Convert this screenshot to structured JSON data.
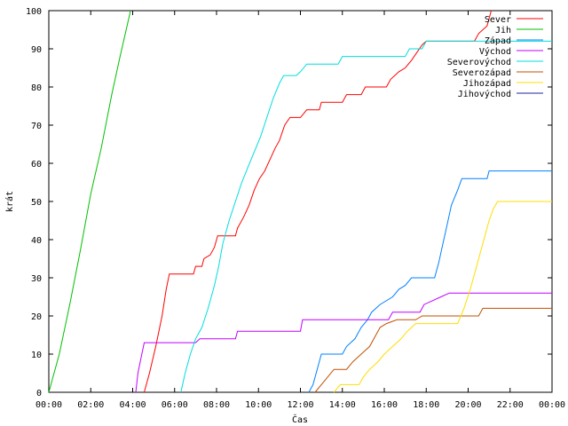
{
  "chart_data": {
    "type": "line",
    "title": "",
    "xlabel": "Čas",
    "ylabel": "krát",
    "xlim": [
      0,
      24
    ],
    "ylim": [
      0,
      100
    ],
    "x_ticks": [
      "00:00",
      "02:00",
      "04:00",
      "06:00",
      "08:00",
      "10:00",
      "12:00",
      "14:00",
      "16:00",
      "18:00",
      "20:00",
      "22:00",
      "00:00"
    ],
    "y_ticks": [
      "0",
      "10",
      "20",
      "30",
      "40",
      "50",
      "60",
      "70",
      "80",
      "90",
      "100"
    ],
    "grid": false,
    "legend_position": "top-right",
    "series": [
      {
        "name": "Sever",
        "color": "#ff0000",
        "points": [
          [
            4.55,
            0
          ],
          [
            4.8,
            5
          ],
          [
            5.1,
            12
          ],
          [
            5.4,
            20
          ],
          [
            5.6,
            27
          ],
          [
            5.75,
            31
          ],
          [
            6.9,
            31
          ],
          [
            7.0,
            33
          ],
          [
            7.3,
            33
          ],
          [
            7.4,
            35
          ],
          [
            7.7,
            36
          ],
          [
            7.9,
            38
          ],
          [
            8.05,
            41
          ],
          [
            8.9,
            41
          ],
          [
            9.0,
            43
          ],
          [
            9.3,
            46
          ],
          [
            9.55,
            49
          ],
          [
            9.8,
            53
          ],
          [
            10.05,
            56
          ],
          [
            10.3,
            58
          ],
          [
            10.55,
            61
          ],
          [
            10.8,
            64
          ],
          [
            11.0,
            66
          ],
          [
            11.25,
            70
          ],
          [
            11.5,
            72
          ],
          [
            12.0,
            72
          ],
          [
            12.3,
            74
          ],
          [
            12.9,
            74
          ],
          [
            13.0,
            76
          ],
          [
            14.0,
            76
          ],
          [
            14.2,
            78
          ],
          [
            14.9,
            78
          ],
          [
            15.1,
            80
          ],
          [
            16.1,
            80
          ],
          [
            16.3,
            82
          ],
          [
            16.7,
            84
          ],
          [
            17.0,
            85
          ],
          [
            17.3,
            87
          ],
          [
            17.55,
            89
          ],
          [
            17.8,
            91
          ],
          [
            18.0,
            92
          ],
          [
            20.3,
            92
          ],
          [
            20.5,
            94
          ],
          [
            20.9,
            96
          ],
          [
            21.1,
            100
          ]
        ]
      },
      {
        "name": "Jih",
        "color": "#00c000",
        "points": [
          [
            0,
            0
          ],
          [
            0.5,
            10
          ],
          [
            1.0,
            23
          ],
          [
            1.5,
            37
          ],
          [
            2.0,
            52
          ],
          [
            2.5,
            64
          ],
          [
            3.0,
            78
          ],
          [
            3.4,
            88
          ],
          [
            3.9,
            100
          ]
        ]
      },
      {
        "name": "Západ",
        "color": "#0080ff",
        "points": [
          [
            12.4,
            0
          ],
          [
            12.6,
            2
          ],
          [
            12.8,
            6
          ],
          [
            13.0,
            10
          ],
          [
            14.0,
            10
          ],
          [
            14.2,
            12
          ],
          [
            14.6,
            14
          ],
          [
            14.9,
            17
          ],
          [
            15.2,
            19
          ],
          [
            15.4,
            21
          ],
          [
            15.8,
            23
          ],
          [
            16.4,
            25
          ],
          [
            16.7,
            27
          ],
          [
            17.0,
            28
          ],
          [
            17.3,
            30
          ],
          [
            18.4,
            30
          ],
          [
            18.6,
            34
          ],
          [
            18.8,
            39
          ],
          [
            19.0,
            44
          ],
          [
            19.2,
            49
          ],
          [
            19.5,
            53
          ],
          [
            19.7,
            56
          ],
          [
            20.9,
            56
          ],
          [
            21.0,
            58
          ],
          [
            24.0,
            58
          ]
        ]
      },
      {
        "name": "Východ",
        "color": "#c000ff",
        "points": [
          [
            4.15,
            0
          ],
          [
            4.25,
            5
          ],
          [
            4.4,
            9
          ],
          [
            4.55,
            13
          ],
          [
            7.0,
            13
          ],
          [
            7.2,
            14
          ],
          [
            8.9,
            14
          ],
          [
            9.0,
            16
          ],
          [
            12.0,
            16
          ],
          [
            12.1,
            19
          ],
          [
            16.2,
            19
          ],
          [
            16.4,
            21
          ],
          [
            17.7,
            21
          ],
          [
            17.9,
            23
          ],
          [
            18.3,
            24
          ],
          [
            18.7,
            25
          ],
          [
            19.1,
            26
          ],
          [
            24.0,
            26
          ]
        ]
      },
      {
        "name": "Severovýchod",
        "color": "#00dddd",
        "points": [
          [
            6.3,
            0
          ],
          [
            6.5,
            5
          ],
          [
            6.75,
            10
          ],
          [
            7.0,
            14
          ],
          [
            7.3,
            17
          ],
          [
            7.6,
            22
          ],
          [
            7.9,
            28
          ],
          [
            8.1,
            33
          ],
          [
            8.3,
            39
          ],
          [
            8.6,
            45
          ],
          [
            8.9,
            50
          ],
          [
            9.2,
            55
          ],
          [
            9.5,
            59
          ],
          [
            9.8,
            63
          ],
          [
            10.1,
            67
          ],
          [
            10.4,
            72
          ],
          [
            10.7,
            77
          ],
          [
            11.0,
            81
          ],
          [
            11.2,
            83
          ],
          [
            11.8,
            83
          ],
          [
            12.0,
            84
          ],
          [
            12.3,
            86
          ],
          [
            13.8,
            86
          ],
          [
            14.0,
            88
          ],
          [
            17.0,
            88
          ],
          [
            17.2,
            90
          ],
          [
            17.8,
            90
          ],
          [
            18.0,
            92
          ],
          [
            24.0,
            92
          ]
        ]
      },
      {
        "name": "Severozápad",
        "color": "#c05000",
        "points": [
          [
            12.7,
            0
          ],
          [
            13.0,
            2
          ],
          [
            13.3,
            4
          ],
          [
            13.6,
            6
          ],
          [
            14.2,
            6
          ],
          [
            14.5,
            8
          ],
          [
            14.9,
            10
          ],
          [
            15.3,
            12
          ],
          [
            15.5,
            14
          ],
          [
            15.8,
            17
          ],
          [
            16.1,
            18
          ],
          [
            16.6,
            19
          ],
          [
            17.5,
            19
          ],
          [
            17.8,
            20
          ],
          [
            20.5,
            20
          ],
          [
            20.7,
            22
          ],
          [
            24.0,
            22
          ]
        ]
      },
      {
        "name": "Jihozápad",
        "color": "#ffdd00",
        "points": [
          [
            13.6,
            0
          ],
          [
            13.9,
            2
          ],
          [
            14.8,
            2
          ],
          [
            15.0,
            4
          ],
          [
            15.3,
            6
          ],
          [
            15.7,
            8
          ],
          [
            16.0,
            10
          ],
          [
            16.4,
            12
          ],
          [
            16.8,
            14
          ],
          [
            17.1,
            16
          ],
          [
            17.5,
            18
          ],
          [
            19.5,
            18
          ],
          [
            19.8,
            22
          ],
          [
            20.1,
            27
          ],
          [
            20.4,
            33
          ],
          [
            20.6,
            37
          ],
          [
            20.8,
            41
          ],
          [
            21.0,
            45
          ],
          [
            21.2,
            48
          ],
          [
            21.4,
            50
          ],
          [
            24.0,
            50
          ]
        ]
      },
      {
        "name": "Jihovýchod",
        "color": "#2020a0",
        "points": []
      }
    ]
  }
}
